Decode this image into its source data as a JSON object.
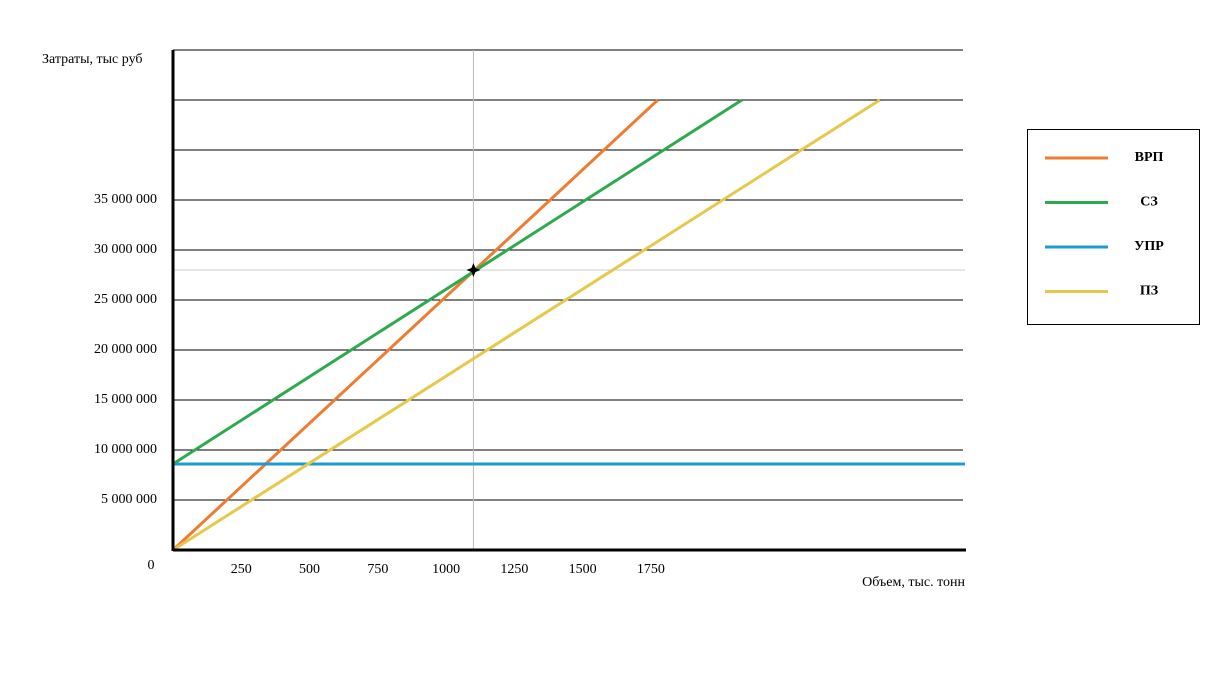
{
  "chart_data": {
    "type": "line",
    "y_label": "Затраты, тыс руб",
    "x_label": "Объем, тыс. тонн",
    "origin_label": "0",
    "xlim": [
      0,
      2900
    ],
    "ylim": [
      0,
      50000000
    ],
    "xticks": [
      250,
      500,
      750,
      1000,
      1250,
      1500,
      1750
    ],
    "yticks": [
      {
        "value": 5000000,
        "label": "5 000 000"
      },
      {
        "value": 10000000,
        "label": "10 000 000"
      },
      {
        "value": 15000000,
        "label": "15 000 000"
      },
      {
        "value": 20000000,
        "label": "20 000 000"
      },
      {
        "value": 25000000,
        "label": "25 000 000"
      },
      {
        "value": 30000000,
        "label": "30 000 000"
      },
      {
        "value": 35000000,
        "label": "35 000 000"
      }
    ],
    "grid_lines": [
      40000000,
      45000000,
      50000000
    ],
    "grid": true,
    "series": [
      {
        "name": "ВРП",
        "color": "#ed7d31",
        "x": [
          0,
          1775
        ],
        "values": [
          0,
          45000000
        ]
      },
      {
        "name": "СЗ",
        "color": "#2eaa4e",
        "x": [
          0,
          2083
        ],
        "values": [
          8600000,
          45000000
        ]
      },
      {
        "name": "УПР",
        "color": "#1f9bd1",
        "x": [
          0,
          2900
        ],
        "values": [
          8600000,
          8600000
        ]
      },
      {
        "name": "ПЗ",
        "color": "#e6c84a",
        "x": [
          0,
          2588
        ],
        "values": [
          0,
          45000000
        ]
      }
    ],
    "break_even": {
      "x": 1100,
      "y": 28000000
    },
    "legend": "right"
  }
}
